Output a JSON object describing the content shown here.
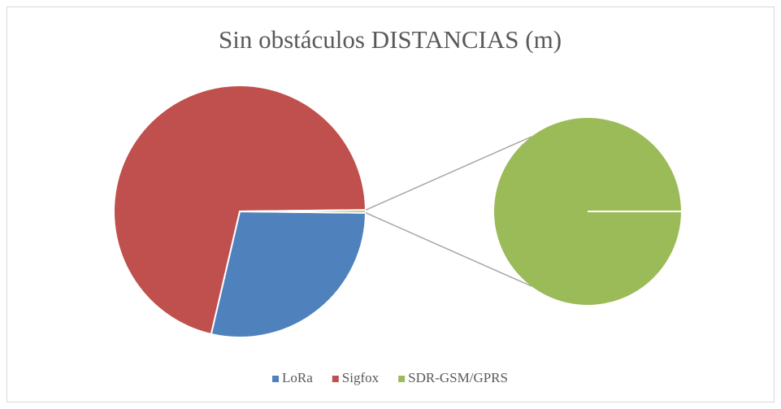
{
  "chart_data": {
    "type": "pie-of-pie",
    "title": "Sin obstáculos DISTANCIAS (m)",
    "categories": [
      "LoRa",
      "Sigfox",
      "SDR-GSM/GPRS"
    ],
    "values": [
      2800,
      7000,
      35
    ],
    "colors": [
      "#4f81bd",
      "#c0504d",
      "#9bbb59"
    ],
    "secondary": [
      2
    ],
    "legend": "bottom"
  }
}
